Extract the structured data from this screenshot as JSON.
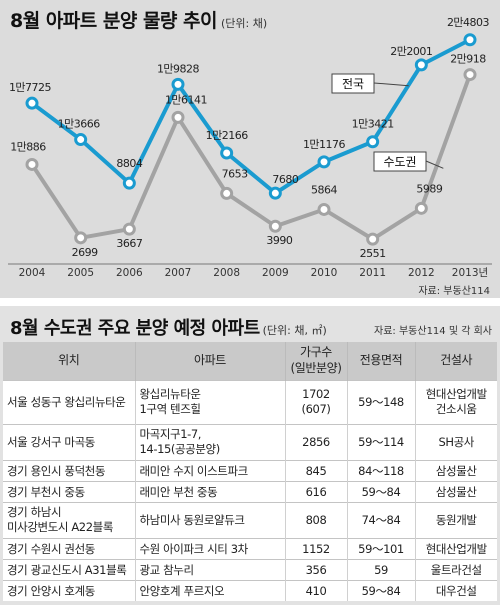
{
  "chart_title": "8월 아파트 분양 물량 추이",
  "chart_unit": "(단위: 채)",
  "chart_source": "자료: 부동산114",
  "colors": {
    "nationwide": "#1a9bd0",
    "capital": "#a3a3a3",
    "background": "#dcdcdc"
  },
  "chart_data": {
    "type": "line",
    "x": [
      "2004",
      "2005",
      "2006",
      "2007",
      "2008",
      "2009",
      "2010",
      "2011",
      "2012",
      "2013년"
    ],
    "series": [
      {
        "name": "전국",
        "values": [
          17725,
          13666,
          8804,
          19828,
          12166,
          7680,
          11176,
          13421,
          22001,
          24803
        ],
        "labels": [
          "1만7725",
          "1만3666",
          "8804",
          "1만9828",
          "1만2166",
          "7680",
          "1만1176",
          "1만3421",
          "2만2001",
          "2만4803"
        ]
      },
      {
        "name": "수도권",
        "values": [
          10886,
          2699,
          3667,
          16141,
          7653,
          3990,
          5864,
          2551,
          5989,
          20918
        ],
        "labels": [
          "1만886",
          "2699",
          "3667",
          "1만6141",
          "7653",
          "3990",
          "5864",
          "2551",
          "5989",
          "2만918"
        ]
      }
    ],
    "grid": false,
    "legend": "inline-callouts"
  },
  "table_title": "8월 수도권 주요 분양 예정 아파트",
  "table_unit": "(단위: 채, ㎡)",
  "table_source": "자료: 부동산114 및 각 회사",
  "table": {
    "headers": [
      "위치",
      "아파트",
      "가구수\n(일반분양)",
      "전용면적",
      "건설사"
    ],
    "rows": [
      [
        "서울 성동구 왕십리뉴타운",
        "왕십리뉴타운\n1구역 텐즈힐",
        "1702\n(607)",
        "59～148",
        "현대산업개발\n건소시움"
      ],
      [
        "서울 강서구 마곡동",
        "마곡지구1-7,\n14-15(공공분양)",
        "2856",
        "59～114",
        "SH공사"
      ],
      [
        "경기 용인시 풍덕천동",
        "래미안 수지 이스트파크",
        "845",
        "84～118",
        "삼성물산"
      ],
      [
        "경기 부천시 중동",
        "래미안 부천 중동",
        "616",
        "59～84",
        "삼성물산"
      ],
      [
        "경기 하남시\n미사강변도시 A22블록",
        "하남미사 동원로얄듀크",
        "808",
        "74～84",
        "동원개발"
      ],
      [
        "경기 수원시 권선동",
        "수원 아이파크 시티 3차",
        "1152",
        "59～101",
        "현대산업개발"
      ],
      [
        "경기 광교신도시 A31블록",
        "광교 참누리",
        "356",
        "59",
        "울트라건설"
      ],
      [
        "경기 안양시 호계동",
        "안양호계 푸르지오",
        "410",
        "59～84",
        "대우건설"
      ]
    ]
  }
}
